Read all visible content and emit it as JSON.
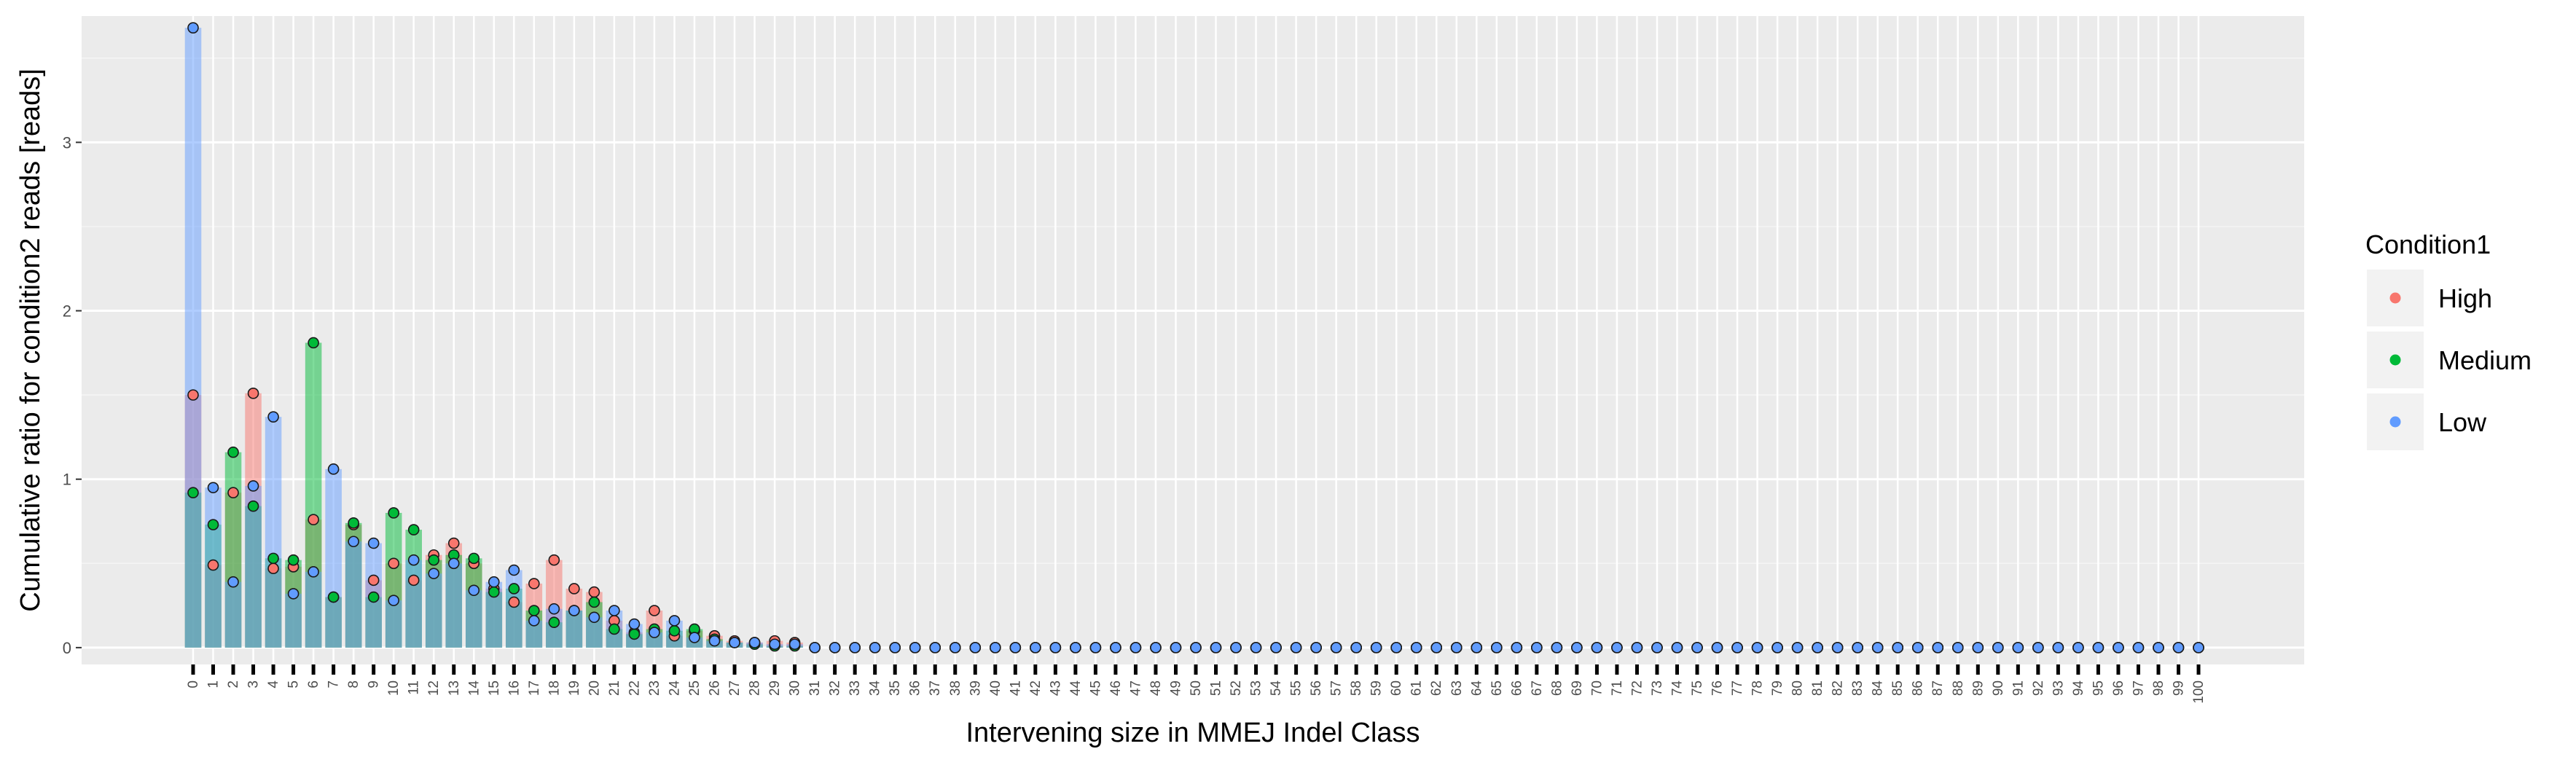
{
  "chart_data": {
    "type": "bar",
    "xlabel": "Intervening size in MMEJ Indel Class",
    "ylabel": "Cumulative ratio for condition2 reads [reads]",
    "ylim": [
      -0.1,
      3.75
    ],
    "yticks": [
      0,
      1,
      2,
      3
    ],
    "grid": true,
    "categories": [
      "0",
      "1",
      "2",
      "3",
      "4",
      "5",
      "6",
      "7",
      "8",
      "9",
      "10",
      "11",
      "12",
      "13",
      "14",
      "15",
      "16",
      "17",
      "18",
      "19",
      "20",
      "21",
      "22",
      "23",
      "24",
      "25",
      "26",
      "27",
      "28",
      "29",
      "30",
      "31",
      "32",
      "33",
      "34",
      "35",
      "36",
      "37",
      "38",
      "39",
      "40",
      "41",
      "42",
      "43",
      "44",
      "45",
      "46",
      "47",
      "48",
      "49",
      "50",
      "51",
      "52",
      "53",
      "54",
      "55",
      "56",
      "57",
      "58",
      "59",
      "60",
      "61",
      "62",
      "63",
      "64",
      "65",
      "66",
      "67",
      "68",
      "69",
      "70",
      "71",
      "72",
      "73",
      "74",
      "75",
      "76",
      "77",
      "78",
      "79",
      "80",
      "81",
      "82",
      "83",
      "84",
      "85",
      "86",
      "87",
      "88",
      "89",
      "90",
      "91",
      "92",
      "93",
      "94",
      "95",
      "96",
      "97",
      "98",
      "99",
      "100"
    ],
    "legend": {
      "title": "Condition1",
      "position": "right"
    },
    "series": [
      {
        "name": "High",
        "color": "#F8766D",
        "values": [
          1.5,
          0.49,
          0.92,
          1.51,
          0.47,
          0.48,
          0.76,
          0.3,
          0.73,
          0.4,
          0.5,
          0.4,
          0.55,
          0.62,
          0.5,
          0.35,
          0.27,
          0.38,
          0.52,
          0.35,
          0.33,
          0.16,
          0.09,
          0.22,
          0.07,
          0.1,
          0.07,
          0.04,
          0.03,
          0.04,
          0.03,
          0,
          0,
          0,
          0,
          0,
          0,
          0,
          0,
          0,
          0,
          0,
          0,
          0,
          0,
          0,
          0,
          0,
          0,
          0,
          0,
          0,
          0,
          0,
          0,
          0,
          0,
          0,
          0,
          0,
          0,
          0,
          0,
          0,
          0,
          0,
          0,
          0,
          0,
          0,
          0,
          0,
          0,
          0,
          0,
          0,
          0,
          0,
          0,
          0,
          0,
          0,
          0,
          0,
          0,
          0,
          0,
          0,
          0,
          0,
          0,
          0,
          0,
          0,
          0,
          0,
          0,
          0,
          0,
          0,
          0
        ]
      },
      {
        "name": "Medium",
        "color": "#00BA38",
        "values": [
          0.92,
          0.73,
          1.16,
          0.84,
          0.53,
          0.52,
          1.81,
          0.3,
          0.74,
          0.3,
          0.8,
          0.7,
          0.52,
          0.55,
          0.53,
          0.33,
          0.35,
          0.22,
          0.15,
          0.22,
          0.27,
          0.11,
          0.08,
          0.11,
          0.1,
          0.11,
          0.05,
          0.03,
          0.02,
          0.01,
          0.01,
          0,
          0,
          0,
          0,
          0,
          0,
          0,
          0,
          0,
          0,
          0,
          0,
          0,
          0,
          0,
          0,
          0,
          0,
          0,
          0,
          0,
          0,
          0,
          0,
          0,
          0,
          0,
          0,
          0,
          0,
          0,
          0,
          0,
          0,
          0,
          0,
          0,
          0,
          0,
          0,
          0,
          0,
          0,
          0,
          0,
          0,
          0,
          0,
          0,
          0,
          0,
          0,
          0,
          0,
          0,
          0,
          0,
          0,
          0,
          0,
          0,
          0,
          0,
          0,
          0,
          0,
          0,
          0,
          0,
          0
        ]
      },
      {
        "name": "Low",
        "color": "#619CFF",
        "values": [
          3.68,
          0.95,
          0.39,
          0.96,
          1.37,
          0.32,
          0.45,
          1.06,
          0.63,
          0.62,
          0.28,
          0.52,
          0.44,
          0.5,
          0.34,
          0.39,
          0.46,
          0.16,
          0.23,
          0.22,
          0.18,
          0.22,
          0.14,
          0.09,
          0.16,
          0.06,
          0.04,
          0.03,
          0.03,
          0.02,
          0.02,
          0,
          0,
          0,
          0,
          0,
          0,
          0,
          0,
          0,
          0,
          0,
          0,
          0,
          0,
          0,
          0,
          0,
          0,
          0,
          0,
          0,
          0,
          0,
          0,
          0,
          0,
          0,
          0,
          0,
          0,
          0,
          0,
          0,
          0,
          0,
          0,
          0,
          0,
          0,
          0,
          0,
          0,
          0,
          0,
          0,
          0,
          0,
          0,
          0,
          0,
          0,
          0,
          0,
          0,
          0,
          0,
          0,
          0,
          0,
          0,
          0,
          0,
          0,
          0,
          0,
          0,
          0,
          0,
          0,
          0
        ]
      }
    ]
  }
}
